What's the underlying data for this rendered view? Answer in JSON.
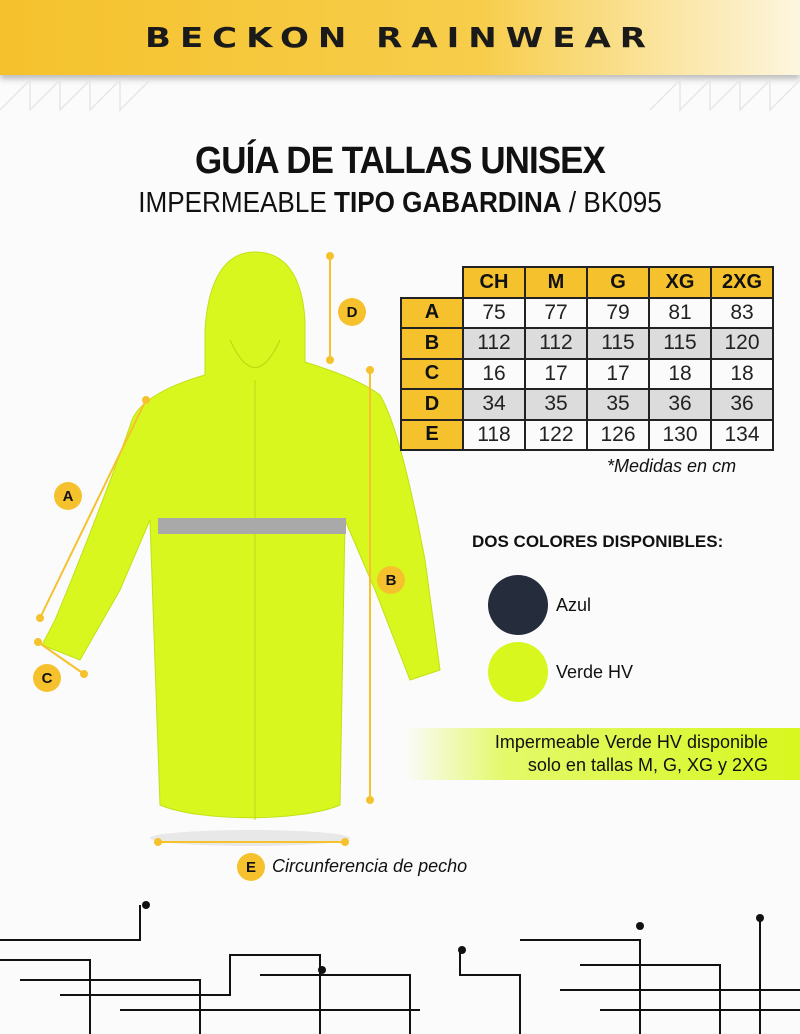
{
  "brand": {
    "logo": "BECKON RAINWEAR"
  },
  "title": {
    "line1": "GUÍA DE TALLAS UNISEX",
    "line2_prefix": "IMPERMEABLE ",
    "line2_bold": "TIPO GABARDINA",
    "line2_suffix": " / BK095"
  },
  "size_table": {
    "columns": [
      "CH",
      "M",
      "G",
      "XG",
      "2XG"
    ],
    "rows": [
      {
        "label": "A",
        "values": [
          "75",
          "77",
          "79",
          "81",
          "83"
        ]
      },
      {
        "label": "B",
        "values": [
          "112",
          "112",
          "115",
          "115",
          "120"
        ]
      },
      {
        "label": "C",
        "values": [
          "16",
          "17",
          "17",
          "18",
          "18"
        ]
      },
      {
        "label": "D",
        "values": [
          "34",
          "35",
          "35",
          "36",
          "36"
        ]
      },
      {
        "label": "E",
        "values": [
          "118",
          "122",
          "126",
          "130",
          "134"
        ]
      }
    ],
    "note": "*Medidas en cm"
  },
  "colors": {
    "title": "DOS COLORES DISPONIBLES:",
    "options": [
      {
        "name": "Azul",
        "hex": "#252c3c"
      },
      {
        "name": "Verde HV",
        "hex": "#d7f71f"
      }
    ]
  },
  "availability_note": {
    "line1": "Impermeable Verde HV disponible",
    "line2": "solo en tallas M, G, XG y 2XG"
  },
  "measure_labels": {
    "A": "A",
    "B": "B",
    "C": "C",
    "D": "D",
    "E": "E"
  },
  "legend_E": "Circunferencia de pecho",
  "accent": "#f5c22d"
}
